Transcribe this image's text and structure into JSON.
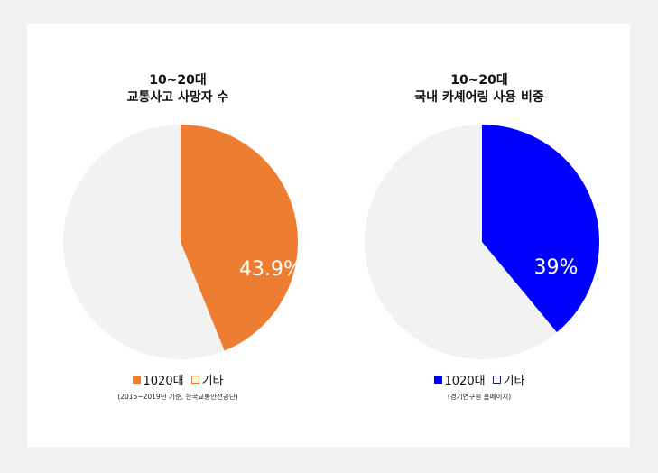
{
  "chart_data": [
    {
      "type": "pie",
      "title": [
        "10~20대",
        "교통사고 사망자 수"
      ],
      "slices": [
        {
          "label": "1020대",
          "value": 43.9,
          "color": "#ED7D31"
        },
        {
          "label": "기타",
          "value": 56.1,
          "color": "#F2F2F2"
        }
      ],
      "value_label": "43.9%",
      "legend": [
        {
          "label": "1020대",
          "fill": "#ED7D31",
          "border": "#ED7D31"
        },
        {
          "label": "기타",
          "fill": "#FFFFFF",
          "border": "#ED7D31"
        }
      ],
      "note": "(2015~2019년  기준, 한국교통안전공단)"
    },
    {
      "type": "pie",
      "title": [
        "10~20대",
        "국내 카셰어링 사용 비중"
      ],
      "slices": [
        {
          "label": "1020대",
          "value": 39,
          "color": "#0000FF"
        },
        {
          "label": "기타",
          "value": 61,
          "color": "#F2F2F2"
        }
      ],
      "value_label": "39%",
      "legend": [
        {
          "label": "1020대",
          "fill": "#0000FF",
          "border": "#0000FF"
        },
        {
          "label": "기타",
          "fill": "#FFFFFF",
          "border": "#1a1a6e"
        }
      ],
      "note": "(경기연구원  홈페이지)"
    }
  ]
}
